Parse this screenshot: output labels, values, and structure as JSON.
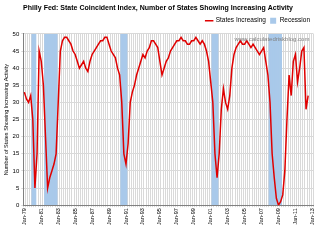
{
  "chart_data": {
    "type": "line",
    "title": "Philly Fed: State Coincident Index, Number of States Showing Increasing Activity",
    "y_label": "Number of States Showing Increasing Activity",
    "annotation": "www.calculatedriskblog.com",
    "categories": [
      "Jan-79",
      null,
      null,
      null,
      null,
      null,
      null,
      null,
      "Jan-81",
      null,
      null,
      null,
      null,
      null,
      null,
      null,
      "Jan-83",
      null,
      null,
      null,
      null,
      null,
      null,
      null,
      "Jan-85",
      null,
      null,
      null,
      null,
      null,
      null,
      null,
      "Jan-87",
      null,
      null,
      null,
      null,
      null,
      null,
      null,
      "Jan-89",
      null,
      null,
      null,
      null,
      null,
      null,
      null,
      "Jan-91",
      null,
      null,
      null,
      null,
      null,
      null,
      null,
      "Jan-93",
      null,
      null,
      null,
      null,
      null,
      null,
      null,
      "Jan-95",
      null,
      null,
      null,
      null,
      null,
      null,
      null,
      "Jan-97",
      null,
      null,
      null,
      null,
      null,
      null,
      null,
      "Jan-99",
      null,
      null,
      null,
      null,
      null,
      null,
      null,
      "Jan-01",
      null,
      null,
      null,
      null,
      null,
      null,
      null,
      "Jan-03",
      null,
      null,
      null,
      null,
      null,
      null,
      null,
      "Jan-05",
      null,
      null,
      null,
      null,
      null,
      null,
      null,
      "Jan-07",
      null,
      null,
      null,
      null,
      null,
      null,
      null,
      "Jan-09",
      null,
      null,
      null,
      null,
      null,
      null,
      null,
      "Jan-11",
      null,
      null,
      null,
      null,
      null,
      null,
      null,
      "Jan-13"
    ],
    "series": [
      {
        "name": "Recession",
        "type": "bar",
        "color": "#a9c9ea",
        "values": [
          null,
          null,
          null,
          null,
          50,
          50,
          null,
          null,
          null,
          null,
          50,
          50,
          50,
          50,
          50,
          50,
          null,
          null,
          null,
          null,
          null,
          null,
          null,
          null,
          null,
          null,
          null,
          null,
          null,
          null,
          null,
          null,
          null,
          null,
          null,
          null,
          null,
          null,
          null,
          null,
          null,
          null,
          null,
          null,
          null,
          null,
          50,
          50,
          50,
          null,
          null,
          null,
          null,
          null,
          null,
          null,
          null,
          null,
          null,
          null,
          null,
          null,
          null,
          null,
          null,
          null,
          null,
          null,
          null,
          null,
          null,
          null,
          null,
          null,
          null,
          null,
          null,
          null,
          null,
          null,
          null,
          null,
          null,
          null,
          null,
          null,
          null,
          null,
          null,
          50,
          50,
          50,
          null,
          null,
          null,
          null,
          null,
          null,
          null,
          null,
          null,
          null,
          null,
          null,
          null,
          null,
          null,
          null,
          null,
          null,
          null,
          null,
          null,
          null,
          null,
          null,
          50,
          50,
          50,
          50,
          50,
          50,
          null,
          null,
          null,
          null,
          null,
          null,
          null,
          null,
          null,
          null,
          null,
          null,
          null,
          null,
          null
        ]
      },
      {
        "name": "States Increasing",
        "type": "line",
        "color": "#e00000",
        "line_style": "solid",
        "values": [
          33,
          31,
          30,
          32,
          25,
          5,
          15,
          45,
          42,
          35,
          20,
          5,
          8,
          10,
          12,
          15,
          30,
          45,
          48,
          49,
          49,
          48,
          47,
          45,
          44,
          42,
          40,
          41,
          42,
          40,
          39,
          42,
          44,
          45,
          46,
          47,
          48,
          48,
          49,
          49,
          47,
          45,
          44,
          43,
          40,
          38,
          30,
          15,
          12,
          18,
          30,
          33,
          35,
          38,
          40,
          42,
          44,
          43,
          45,
          46,
          48,
          48,
          47,
          46,
          42,
          38,
          40,
          42,
          43,
          45,
          46,
          47,
          48,
          48,
          49,
          48,
          48,
          47,
          47,
          48,
          48,
          49,
          48,
          47,
          48,
          47,
          45,
          42,
          36,
          30,
          15,
          8,
          15,
          28,
          34,
          30,
          28,
          32,
          40,
          44,
          46,
          47,
          48,
          47,
          47,
          48,
          47,
          46,
          47,
          46,
          45,
          44,
          45,
          46,
          42,
          38,
          30,
          15,
          8,
          2,
          0,
          1,
          3,
          10,
          25,
          38,
          32,
          42,
          44,
          36,
          40,
          45,
          46,
          28,
          32,
          null,
          null
        ]
      }
    ],
    "ylim": [
      0,
      50
    ],
    "yticks": [
      0,
      5,
      10,
      15,
      20,
      25,
      30,
      35,
      40,
      45,
      50
    ],
    "grid": true,
    "legend": "upper right"
  }
}
